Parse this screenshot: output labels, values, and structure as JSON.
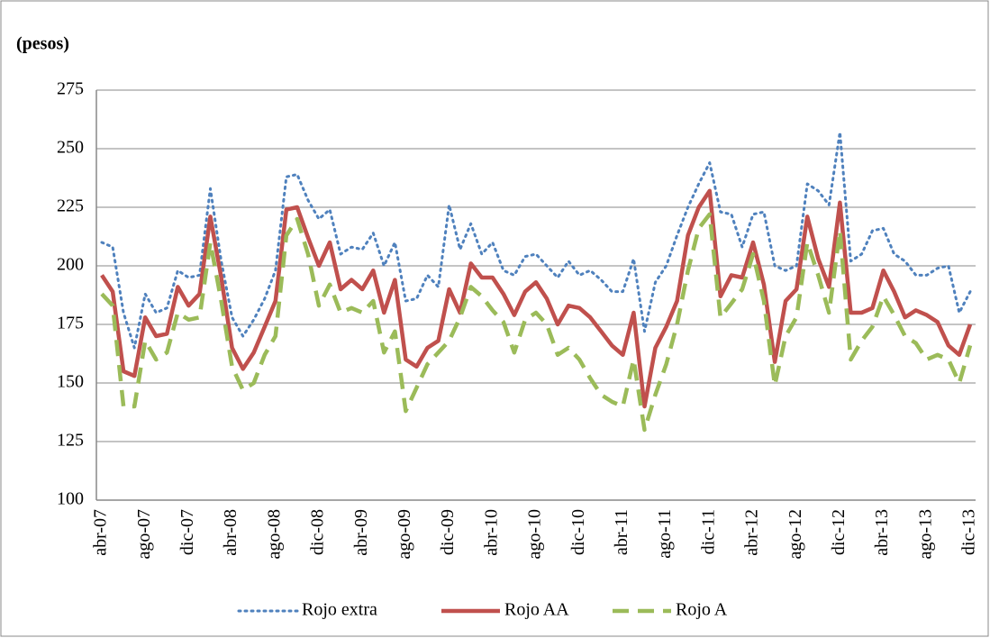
{
  "chart_data": {
    "type": "line",
    "y_label": "(pesos)",
    "categories": [
      "abr-07",
      null,
      null,
      null,
      "ago-07",
      null,
      null,
      null,
      "dic-07",
      null,
      null,
      null,
      "abr-08",
      null,
      null,
      null,
      "ago-08",
      null,
      null,
      null,
      "dic-08",
      null,
      null,
      null,
      "abr-09",
      null,
      null,
      null,
      "ago-09",
      null,
      null,
      null,
      "dic-09",
      null,
      null,
      null,
      "abr-10",
      null,
      null,
      null,
      "ago-10",
      null,
      null,
      null,
      "dic-10",
      null,
      null,
      null,
      "abr-11",
      null,
      null,
      null,
      "ago-11",
      null,
      null,
      null,
      "dic-11",
      null,
      null,
      null,
      "abr-12",
      null,
      null,
      null,
      "ago-12",
      null,
      null,
      null,
      "dic-12",
      null,
      null,
      null,
      "abr-13",
      null,
      null,
      null,
      "ago-13",
      null,
      null,
      null,
      "dic-13"
    ],
    "series": [
      {
        "name": "Rojo extra",
        "color": "#4f81bd",
        "style": "dotted",
        "values": [
          210,
          208,
          180,
          165,
          188,
          180,
          182,
          198,
          195,
          196,
          233,
          202,
          178,
          170,
          177,
          186,
          198,
          238,
          239,
          228,
          220,
          224,
          205,
          208,
          207,
          214,
          200,
          210,
          185,
          186,
          196,
          191,
          226,
          207,
          218,
          205,
          210,
          198,
          196,
          204,
          205,
          200,
          195,
          202,
          196,
          198,
          194,
          189,
          189,
          203,
          172,
          193,
          200,
          213,
          225,
          235,
          244,
          223,
          222,
          208,
          222,
          223,
          200,
          198,
          200,
          235,
          232,
          226,
          257,
          202,
          205,
          215,
          216,
          205,
          202,
          196,
          196,
          199,
          200,
          180,
          189
        ]
      },
      {
        "name": "Rojo AA",
        "color": "#c0504d",
        "style": "solid",
        "values": [
          196,
          189,
          155,
          153,
          178,
          170,
          171,
          191,
          183,
          188,
          221,
          195,
          165,
          156,
          163,
          174,
          185,
          224,
          225,
          212,
          200,
          210,
          190,
          194,
          190,
          198,
          180,
          194,
          160,
          157,
          165,
          168,
          190,
          180,
          201,
          195,
          195,
          188,
          179,
          189,
          193,
          186,
          175,
          183,
          182,
          178,
          172,
          166,
          162,
          180,
          140,
          165,
          174,
          185,
          213,
          225,
          232,
          187,
          196,
          195,
          210,
          192,
          159,
          185,
          190,
          221,
          203,
          191,
          227,
          180,
          180,
          182,
          198,
          189,
          178,
          181,
          179,
          176,
          166,
          162,
          175
        ]
      },
      {
        "name": "Rojo A",
        "color": "#9bbb59",
        "style": "dashed",
        "values": [
          188,
          183,
          140,
          140,
          168,
          160,
          163,
          180,
          177,
          178,
          210,
          185,
          157,
          147,
          150,
          162,
          170,
          213,
          220,
          205,
          183,
          192,
          180,
          182,
          180,
          185,
          163,
          172,
          138,
          148,
          158,
          163,
          168,
          178,
          191,
          187,
          181,
          176,
          163,
          177,
          180,
          175,
          162,
          165,
          160,
          152,
          145,
          142,
          140,
          160,
          130,
          145,
          158,
          175,
          198,
          216,
          222,
          178,
          184,
          190,
          205,
          185,
          149,
          170,
          178,
          210,
          196,
          180,
          215,
          160,
          168,
          174,
          187,
          179,
          170,
          167,
          160,
          162,
          160,
          150,
          166
        ]
      }
    ],
    "ylim": [
      100,
      275
    ],
    "yticks": [
      100,
      125,
      150,
      175,
      200,
      225,
      250,
      275
    ],
    "grid": true,
    "legend": "bottom"
  }
}
